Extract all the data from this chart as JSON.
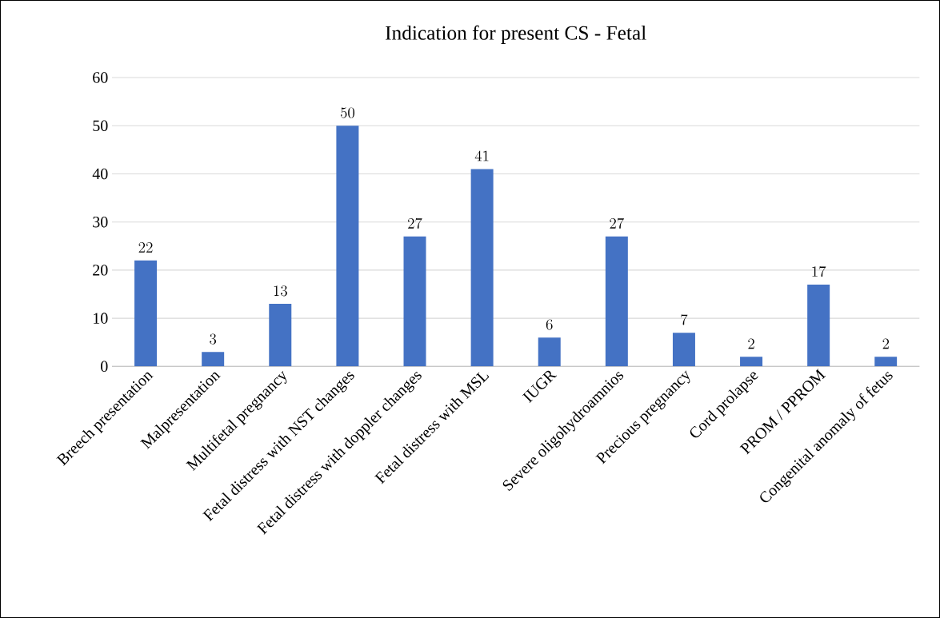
{
  "chart_data": {
    "type": "bar",
    "title": "Indication for present CS - Fetal",
    "categories": [
      "Breech presentation",
      "Malpresentation",
      "Multifetal pregnancy",
      "Fetal distress with NST changes",
      "Fetal distress with doppler changes",
      "Fetal distress with MSL",
      "IUGR",
      "Severe oligohydroamnios",
      "Precious pregnancy",
      "Cord prolapse",
      "PROM / PPROM",
      "Congenital anomaly of fetus"
    ],
    "values": [
      22,
      3,
      13,
      50,
      27,
      41,
      6,
      27,
      7,
      2,
      17,
      2
    ],
    "color": "#4472c4",
    "ylim": [
      0,
      60
    ],
    "yticks": [
      0,
      10,
      20,
      30,
      40,
      50,
      60
    ],
    "grid": "y",
    "data_labels": true
  }
}
